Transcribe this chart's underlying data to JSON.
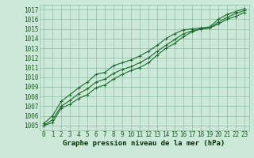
{
  "title": "Graphe pression niveau de la mer (hPa)",
  "hours": [
    0,
    1,
    2,
    3,
    4,
    5,
    6,
    7,
    8,
    9,
    10,
    11,
    12,
    13,
    14,
    15,
    16,
    17,
    18,
    19,
    20,
    21,
    22,
    23
  ],
  "line_top": [
    1005.2,
    1006.0,
    1007.5,
    1008.2,
    1008.9,
    1009.5,
    1010.3,
    1010.5,
    1011.2,
    1011.5,
    1011.8,
    1012.2,
    1012.7,
    1013.3,
    1014.0,
    1014.5,
    1014.9,
    1015.0,
    1015.1,
    1015.2,
    1016.0,
    1016.5,
    1016.8,
    1017.1
  ],
  "line_mid": [
    1005.0,
    1005.6,
    1007.0,
    1007.6,
    1008.3,
    1008.8,
    1009.5,
    1009.8,
    1010.4,
    1010.8,
    1011.1,
    1011.5,
    1012.0,
    1012.7,
    1013.3,
    1013.9,
    1014.5,
    1014.8,
    1015.0,
    1015.1,
    1015.7,
    1016.2,
    1016.6,
    1016.9
  ],
  "line_bot": [
    1005.0,
    1005.3,
    1006.8,
    1007.2,
    1007.8,
    1008.2,
    1008.9,
    1009.2,
    1009.8,
    1010.3,
    1010.7,
    1011.0,
    1011.5,
    1012.3,
    1013.0,
    1013.5,
    1014.2,
    1014.7,
    1015.0,
    1015.1,
    1015.5,
    1016.0,
    1016.3,
    1016.7
  ],
  "ylim": [
    1004.5,
    1017.5
  ],
  "yticks": [
    1005,
    1006,
    1007,
    1008,
    1009,
    1010,
    1011,
    1012,
    1013,
    1014,
    1015,
    1016,
    1017
  ],
  "bg_color": "#cce8d8",
  "grid_color": "#8cbca0",
  "line_color": "#1a6b2a",
  "title_color": "#1a5c20",
  "tick_color": "#1a5c20",
  "axis_label_color": "#003300",
  "title_fontsize": 6.5,
  "tick_fontsize": 5.5
}
